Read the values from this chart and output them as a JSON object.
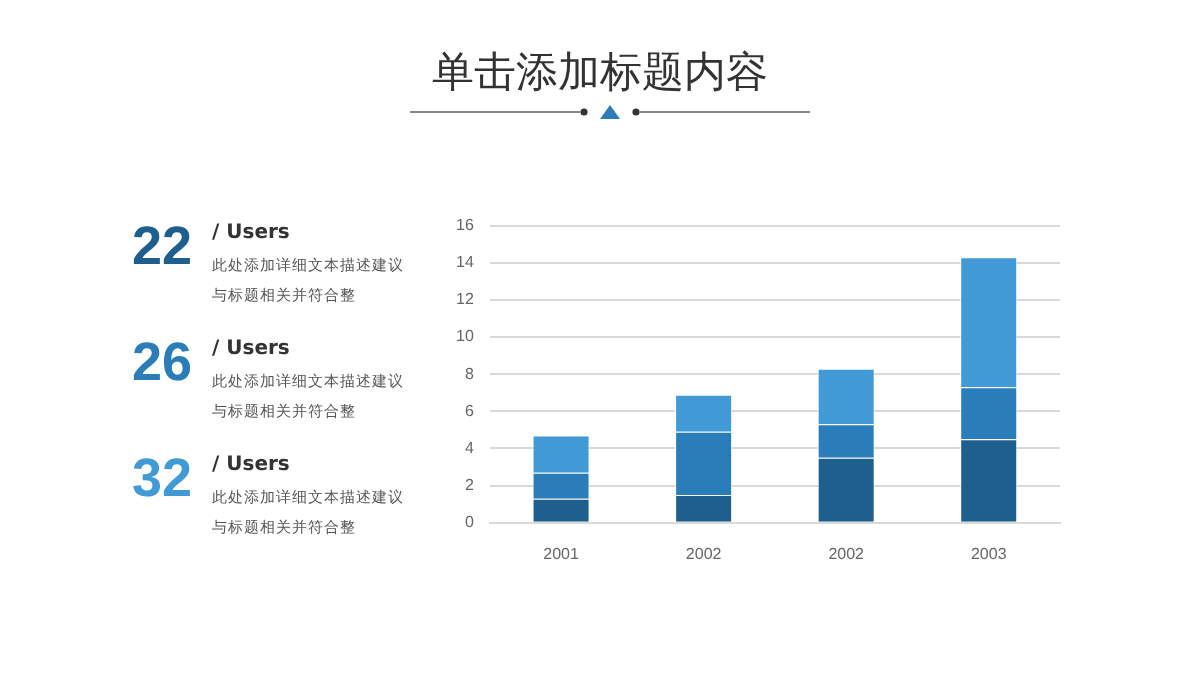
{
  "chart_data": {
    "type": "bar",
    "title": "单击添加标题内容",
    "categories": [
      "2001",
      "2002",
      "2002",
      "2003"
    ],
    "stacked": true,
    "series": [
      {
        "color": "#1f5f8e",
        "values": [
          1.3,
          1.5,
          3.5,
          4.5
        ]
      },
      {
        "color": "#2a7db8",
        "values": [
          1.4,
          3.4,
          1.8,
          2.8
        ]
      },
      {
        "color": "#419ad6",
        "values": [
          2.0,
          2.0,
          3.0,
          7.0
        ]
      }
    ],
    "ylim": [
      0,
      16
    ],
    "yticks": [
      0,
      2,
      4,
      6,
      8,
      10,
      12,
      14,
      16
    ],
    "grid": "y",
    "legend": false,
    "annotations": [
      "22",
      "/ Users",
      "此处添加详细文本描述建议",
      "与标题相关并符合整",
      "26",
      "/ Users",
      "此处添加详细文本描述建议",
      "与标题相关并符合整",
      "32",
      "/ Users",
      "此处添加详细文本描述建议",
      "与标题相关并符合整"
    ]
  }
}
